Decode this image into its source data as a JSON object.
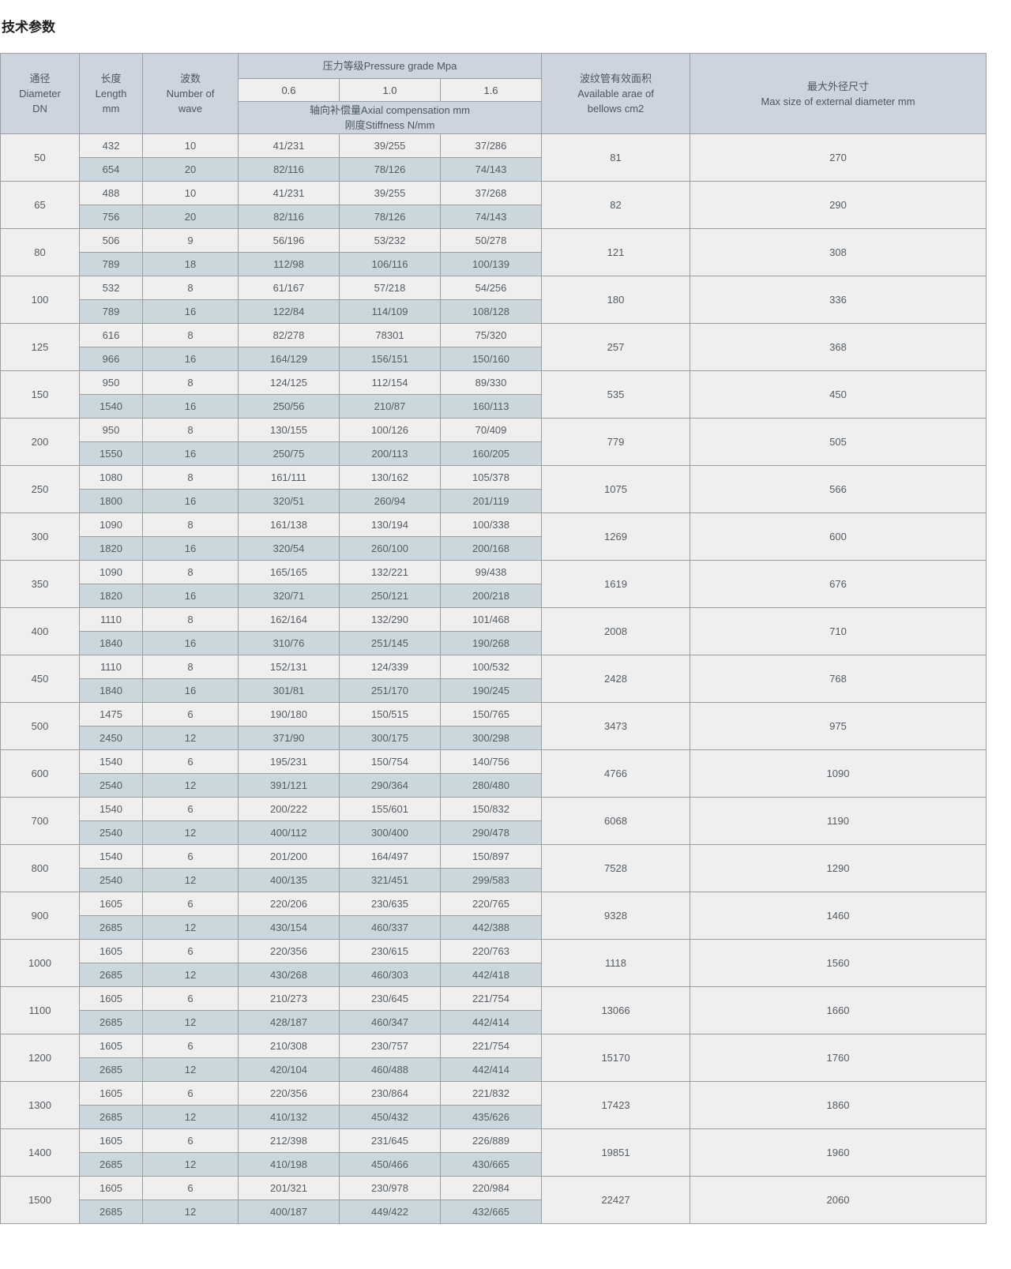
{
  "title": "技术参数",
  "table": {
    "headers": {
      "diameter": "通径\nDiameter\nDN",
      "length": "长度\nLength\nmm",
      "waves": "波数\nNumber of\nwave",
      "pressure_grade": "压力等级Pressure grade Mpa",
      "pressure_levels": [
        "0.6",
        "1.0",
        "1.6"
      ],
      "compensation": "轴向补偿量Axial compensation mm\n刚度Stiffness N/mm",
      "bellows_area": "波纹管有效面积\nAvailable arae of\nbellows cm2",
      "max_diameter": "最大外径尺寸\nMax size of external diameter mm"
    },
    "rows": [
      {
        "dn": "50",
        "area": "81",
        "max": "270",
        "sub": [
          [
            "432",
            "10",
            "41/231",
            "39/255",
            "37/286"
          ],
          [
            "654",
            "20",
            "82/116",
            "78/126",
            "74/143"
          ]
        ]
      },
      {
        "dn": "65",
        "area": "82",
        "max": "290",
        "sub": [
          [
            "488",
            "10",
            "41/231",
            "39/255",
            "37/268"
          ],
          [
            "756",
            "20",
            "82/116",
            "78/126",
            "74/143"
          ]
        ]
      },
      {
        "dn": "80",
        "area": "121",
        "max": "308",
        "sub": [
          [
            "506",
            "9",
            "56/196",
            "53/232",
            "50/278"
          ],
          [
            "789",
            "18",
            "112/98",
            "106/116",
            "100/139"
          ]
        ]
      },
      {
        "dn": "100",
        "area": "180",
        "max": "336",
        "sub": [
          [
            "532",
            "8",
            "61/167",
            "57/218",
            "54/256"
          ],
          [
            "789",
            "16",
            "122/84",
            "114/109",
            "108/128"
          ]
        ]
      },
      {
        "dn": "125",
        "area": "257",
        "max": "368",
        "sub": [
          [
            "616",
            "8",
            "82/278",
            "78301",
            "75/320"
          ],
          [
            "966",
            "16",
            "164/129",
            "156/151",
            "150/160"
          ]
        ]
      },
      {
        "dn": "150",
        "area": "535",
        "max": "450",
        "sub": [
          [
            "950",
            "8",
            "124/125",
            "112/154",
            "89/330"
          ],
          [
            "1540",
            "16",
            "250/56",
            "210/87",
            "160/113"
          ]
        ]
      },
      {
        "dn": "200",
        "area": "779",
        "max": "505",
        "sub": [
          [
            "950",
            "8",
            "130/155",
            "100/126",
            "70/409"
          ],
          [
            "1550",
            "16",
            "250/75",
            "200/113",
            "160/205"
          ]
        ]
      },
      {
        "dn": "250",
        "area": "1075",
        "max": "566",
        "sub": [
          [
            "1080",
            "8",
            "161/111",
            "130/162",
            "105/378"
          ],
          [
            "1800",
            "16",
            "320/51",
            "260/94",
            "201/119"
          ]
        ]
      },
      {
        "dn": "300",
        "area": "1269",
        "max": "600",
        "sub": [
          [
            "1090",
            "8",
            "161/138",
            "130/194",
            "100/338"
          ],
          [
            "1820",
            "16",
            "320/54",
            "260/100",
            "200/168"
          ]
        ]
      },
      {
        "dn": "350",
        "area": "1619",
        "max": "676",
        "sub": [
          [
            "1090",
            "8",
            "165/165",
            "132/221",
            "99/438"
          ],
          [
            "1820",
            "16",
            "320/71",
            "250/121",
            "200/218"
          ]
        ]
      },
      {
        "dn": "400",
        "area": "2008",
        "max": "710",
        "sub": [
          [
            "1110",
            "8",
            "162/164",
            "132/290",
            "101/468"
          ],
          [
            "1840",
            "16",
            "310/76",
            "251/145",
            "190/268"
          ]
        ]
      },
      {
        "dn": "450",
        "area": "2428",
        "max": "768",
        "sub": [
          [
            "1110",
            "8",
            "152/131",
            "124/339",
            "100/532"
          ],
          [
            "1840",
            "16",
            "301/81",
            "251/170",
            "190/245"
          ]
        ]
      },
      {
        "dn": "500",
        "area": "3473",
        "max": "975",
        "sub": [
          [
            "1475",
            "6",
            "190/180",
            "150/515",
            "150/765"
          ],
          [
            "2450",
            "12",
            "371/90",
            "300/175",
            "300/298"
          ]
        ]
      },
      {
        "dn": "600",
        "area": "4766",
        "max": "1090",
        "sub": [
          [
            "1540",
            "6",
            "195/231",
            "150/754",
            "140/756"
          ],
          [
            "2540",
            "12",
            "391/121",
            "290/364",
            "280/480"
          ]
        ]
      },
      {
        "dn": "700",
        "area": "6068",
        "max": "1190",
        "sub": [
          [
            "1540",
            "6",
            "200/222",
            "155/601",
            "150/832"
          ],
          [
            "2540",
            "12",
            "400/112",
            "300/400",
            "290/478"
          ]
        ]
      },
      {
        "dn": "800",
        "area": "7528",
        "max": "1290",
        "sub": [
          [
            "1540",
            "6",
            "201/200",
            "164/497",
            "150/897"
          ],
          [
            "2540",
            "12",
            "400/135",
            "321/451",
            "299/583"
          ]
        ]
      },
      {
        "dn": "900",
        "area": "9328",
        "max": "1460",
        "sub": [
          [
            "1605",
            "6",
            "220/206",
            "230/635",
            "220/765"
          ],
          [
            "2685",
            "12",
            "430/154",
            "460/337",
            "442/388"
          ]
        ]
      },
      {
        "dn": "1000",
        "area": "1118",
        "max": "1560",
        "sub": [
          [
            "1605",
            "6",
            "220/356",
            "230/615",
            "220/763"
          ],
          [
            "2685",
            "12",
            "430/268",
            "460/303",
            "442/418"
          ]
        ]
      },
      {
        "dn": "1100",
        "area": "13066",
        "max": "1660",
        "sub": [
          [
            "1605",
            "6",
            "210/273",
            "230/645",
            "221/754"
          ],
          [
            "2685",
            "12",
            "428/187",
            "460/347",
            "442/414"
          ]
        ]
      },
      {
        "dn": "1200",
        "area": "15170",
        "max": "1760",
        "sub": [
          [
            "1605",
            "6",
            "210/308",
            "230/757",
            "221/754"
          ],
          [
            "2685",
            "12",
            "420/104",
            "460/488",
            "442/414"
          ]
        ]
      },
      {
        "dn": "1300",
        "area": "17423",
        "max": "1860",
        "sub": [
          [
            "1605",
            "6",
            "220/356",
            "230/864",
            "221/832"
          ],
          [
            "2685",
            "12",
            "410/132",
            "450/432",
            "435/626"
          ]
        ]
      },
      {
        "dn": "1400",
        "area": "19851",
        "max": "1960",
        "sub": [
          [
            "1605",
            "6",
            "212/398",
            "231/645",
            "226/889"
          ],
          [
            "2685",
            "12",
            "410/198",
            "450/466",
            "430/665"
          ]
        ]
      },
      {
        "dn": "1500",
        "area": "22427",
        "max": "2060",
        "sub": [
          [
            "1605",
            "6",
            "201/321",
            "230/978",
            "220/984"
          ],
          [
            "2685",
            "12",
            "400/187",
            "449/422",
            "432/665"
          ]
        ]
      }
    ]
  }
}
